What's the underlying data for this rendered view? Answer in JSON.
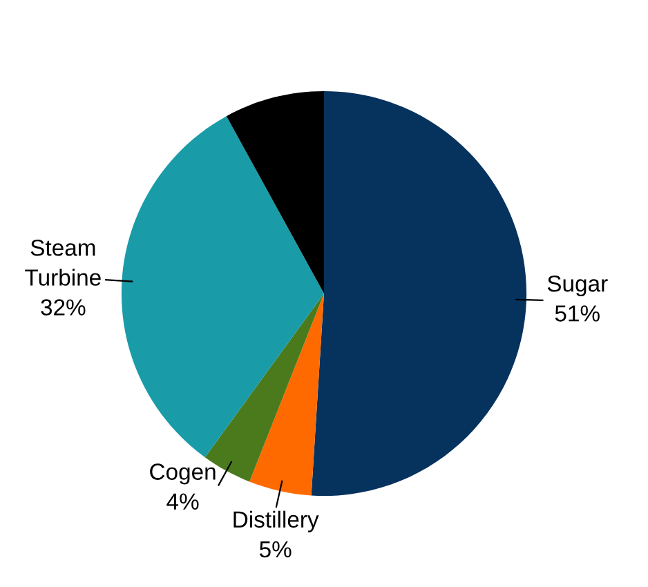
{
  "chart_data": {
    "type": "pie",
    "categories": [
      "Sugar",
      "Distillery",
      "Cogen",
      "Steam Turbine",
      null
    ],
    "values": [
      51,
      5,
      4,
      32,
      8
    ],
    "value_labels": [
      "51%",
      "5%",
      "4%",
      "32%",
      null
    ],
    "colors": [
      "#06325e",
      "#ff6a00",
      "#4a7a1c",
      "#1a9ba8",
      "#000000"
    ],
    "legend": false
  }
}
